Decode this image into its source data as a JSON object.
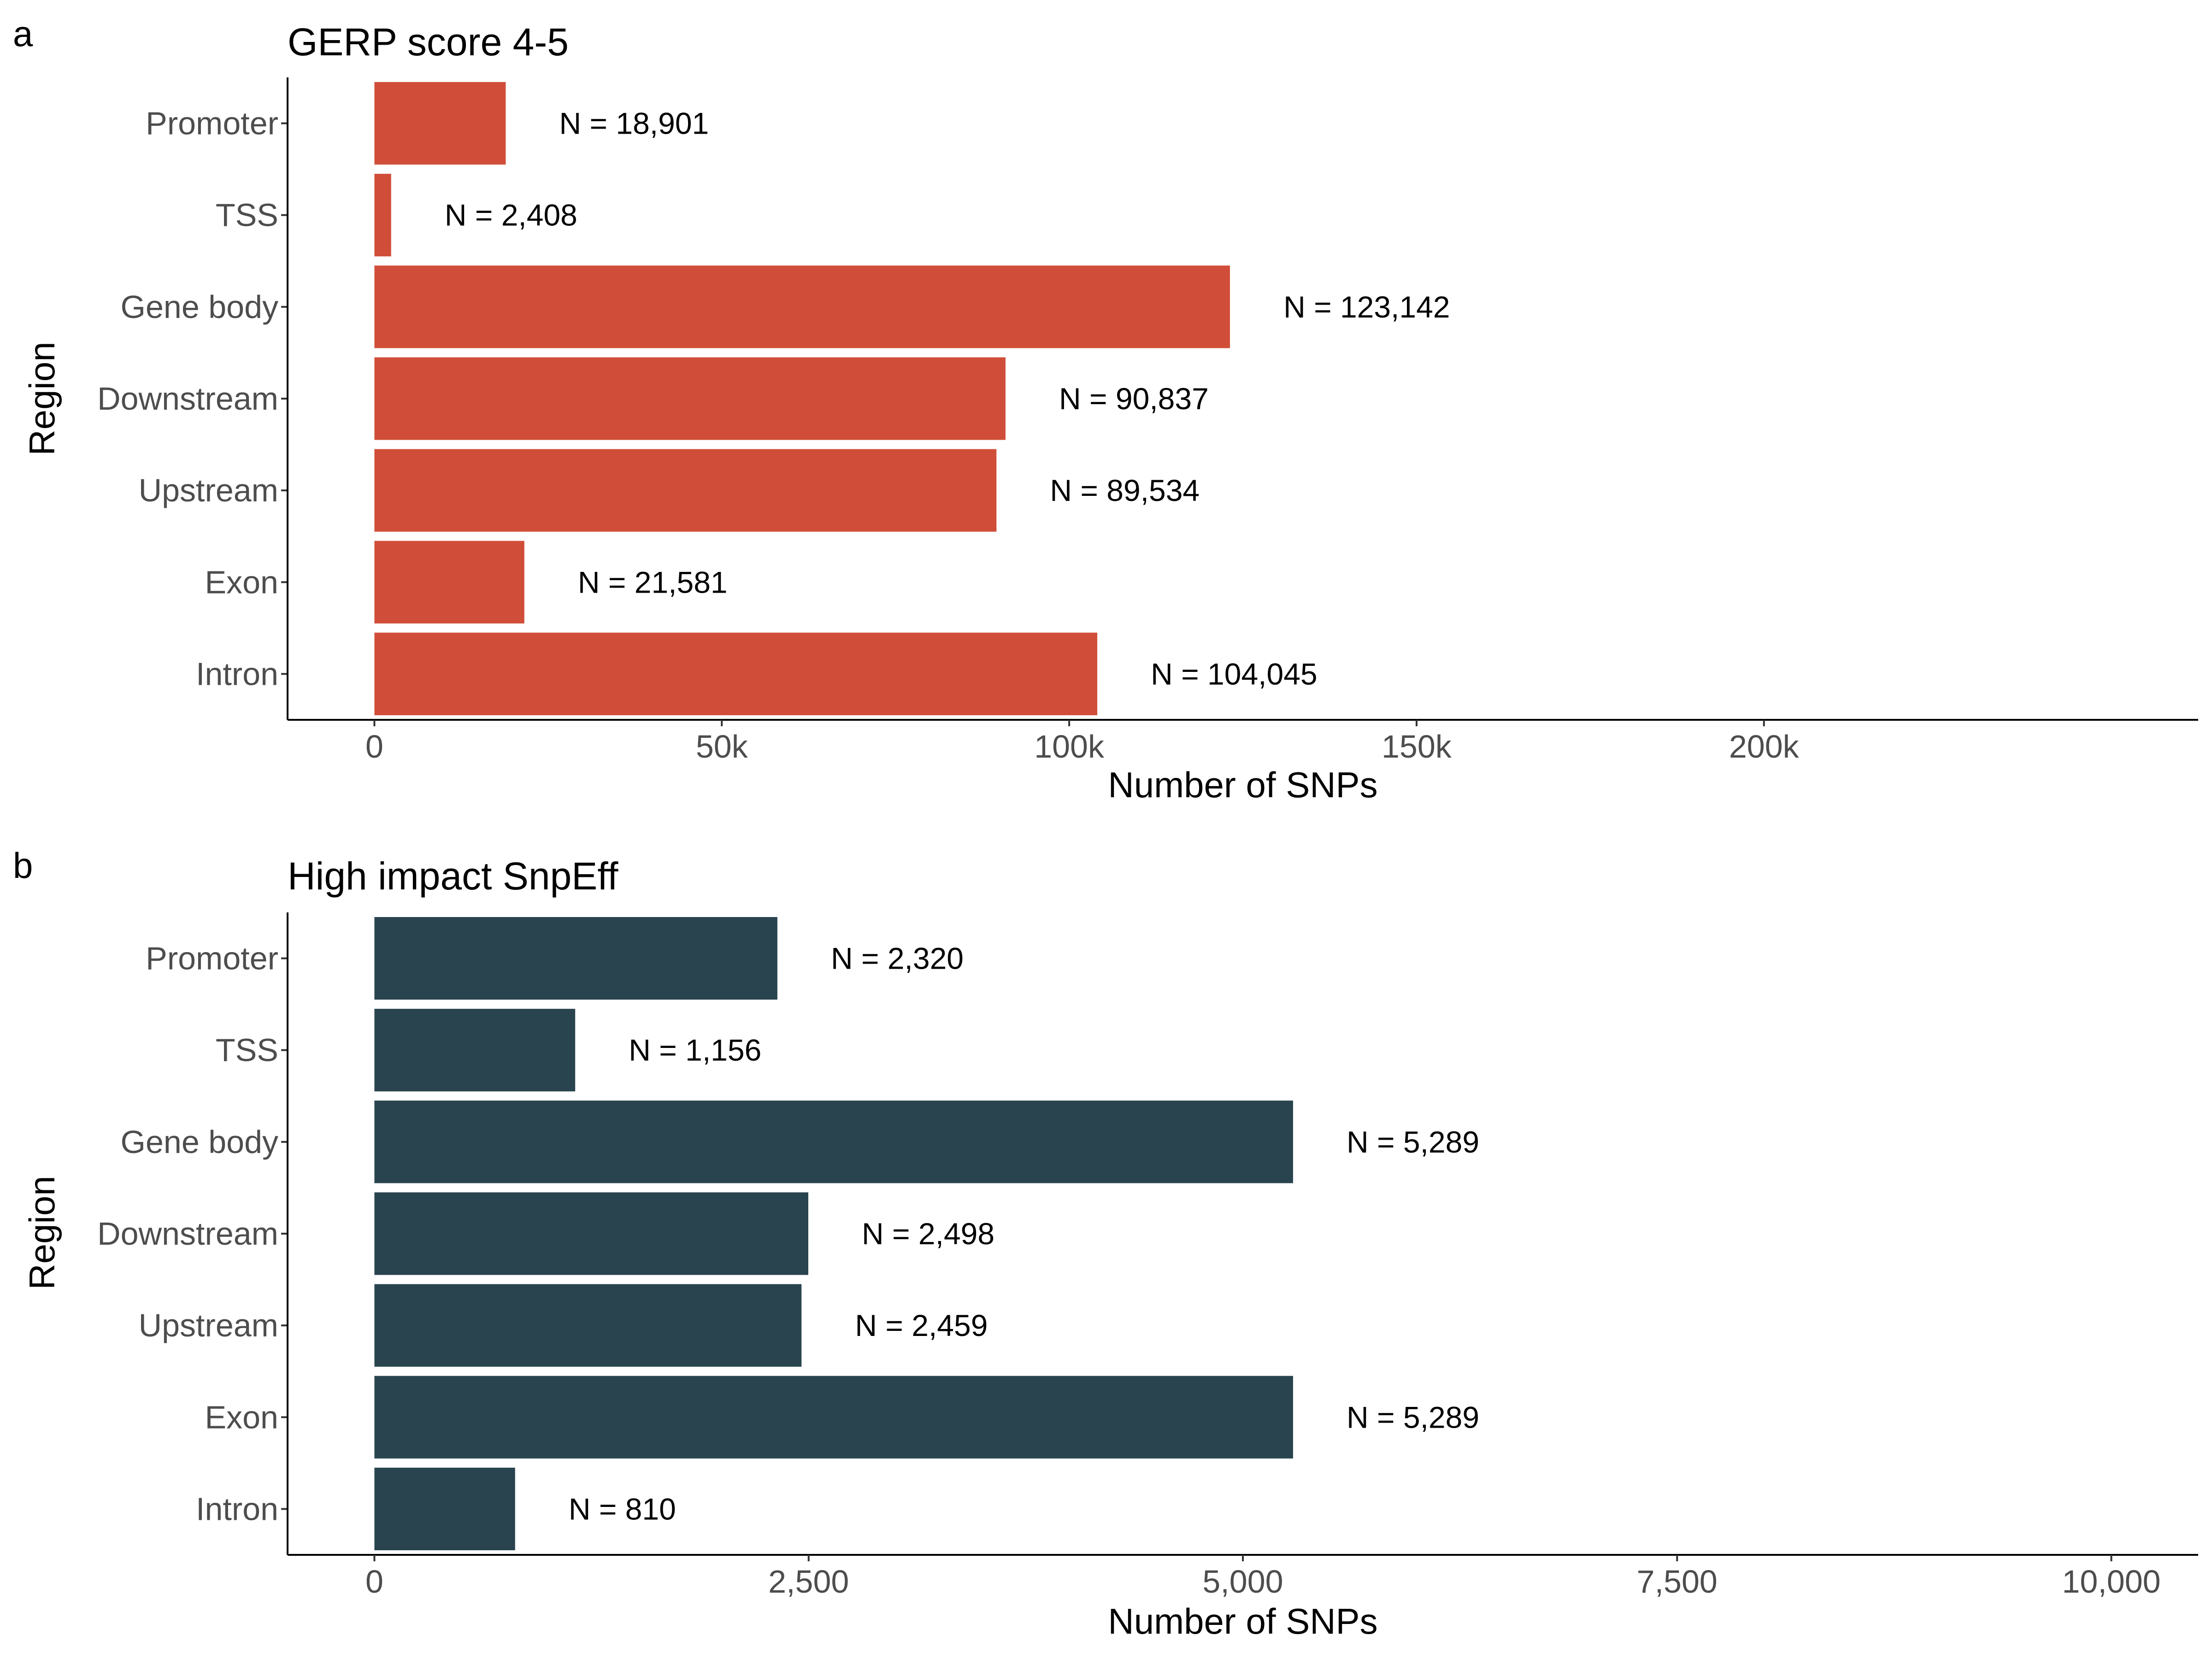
{
  "chart_data": [
    {
      "type": "bar",
      "orientation": "horizontal",
      "panel": "a",
      "title": "GERP score 4-5",
      "xlabel": "Number of SNPs",
      "ylabel": "Region",
      "categories": [
        "Promoter",
        "TSS",
        "Gene body",
        "Downstream",
        "Upstream",
        "Exon",
        "Intron"
      ],
      "values": [
        18901,
        2408,
        123142,
        90837,
        89534,
        21581,
        104045
      ],
      "data_labels": [
        "N = 18,901",
        "N = 2,408",
        "N = 123,142",
        "N = 90,837",
        "N = 89,534",
        "N = 21,581",
        "N = 104,045"
      ],
      "xlim": [
        -12500,
        262500
      ],
      "xticks": [
        0,
        50000,
        100000,
        150000,
        200000
      ],
      "xtick_labels": [
        "0",
        "50k",
        "100k",
        "150k",
        "200k"
      ],
      "color": "#D04E39",
      "grid": false,
      "legend": "none"
    },
    {
      "type": "bar",
      "orientation": "horizontal",
      "panel": "b",
      "title": "High impact SnpEff",
      "xlabel": "Number of SNPs",
      "ylabel": "Region",
      "categories": [
        "Promoter",
        "TSS",
        "Gene body",
        "Downstream",
        "Upstream",
        "Exon",
        "Intron"
      ],
      "values": [
        2320,
        1156,
        5289,
        2498,
        2459,
        5289,
        810
      ],
      "data_labels": [
        "N = 2,320",
        "N = 1,156",
        "N = 5,289",
        "N = 2,498",
        "N = 2,459",
        "N = 5,289",
        "N = 810"
      ],
      "xlim": [
        -500,
        10500
      ],
      "xticks": [
        0,
        2500,
        5000,
        7500,
        10000
      ],
      "xtick_labels": [
        "0",
        "2,500",
        "5,000",
        "7,500",
        "10,000"
      ],
      "color": "#29444F",
      "grid": false,
      "legend": "none"
    }
  ]
}
